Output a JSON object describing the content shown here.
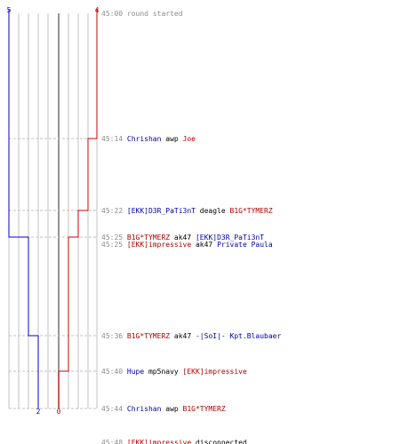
{
  "colors": {
    "blue": "#0000cc",
    "red": "#cc0000",
    "grid": "#c0c0c0",
    "guide": "#c0c0c0",
    "center": "#707070",
    "timestamp": "#8c8c8c"
  },
  "teams": {
    "left": {
      "color": "blue",
      "start": "5",
      "end": "2"
    },
    "right": {
      "color": "red",
      "start": "4",
      "end": "0"
    }
  },
  "events": [
    {
      "time": "45:00",
      "parts": [
        {
          "text": "round started",
          "c": "gray"
        }
      ]
    },
    {
      "time": "45:14",
      "parts": [
        {
          "text": "Chrishan",
          "c": "blue"
        },
        {
          "text": "awp",
          "c": "black"
        },
        {
          "text": "Joe",
          "c": "red"
        }
      ]
    },
    {
      "time": "45:22",
      "parts": [
        {
          "text": "[EKK]D3R_PaTi3nT",
          "c": "blue"
        },
        {
          "text": "deagle",
          "c": "black"
        },
        {
          "text": "B1G*TYMERZ",
          "c": "red"
        }
      ]
    },
    {
      "time": "45:25",
      "parts": [
        {
          "text": "B1G*TYMERZ",
          "c": "red"
        },
        {
          "text": "ak47",
          "c": "black"
        },
        {
          "text": "[EKK]D3R_PaTi3nT",
          "c": "blue"
        }
      ]
    },
    {
      "time": "45:25",
      "parts": [
        {
          "text": "[EKK]impressive",
          "c": "red"
        },
        {
          "text": "ak47",
          "c": "black"
        },
        {
          "text": "Private Paula",
          "c": "blue"
        }
      ]
    },
    {
      "time": "45:36",
      "parts": [
        {
          "text": "B1G*TYMERZ",
          "c": "red"
        },
        {
          "text": "ak47",
          "c": "black"
        },
        {
          "text": "-|SoI|- Kpt.Blaubaer",
          "c": "blue"
        }
      ]
    },
    {
      "time": "45:40",
      "parts": [
        {
          "text": "Hupe",
          "c": "blue"
        },
        {
          "text": "mp5navy",
          "c": "black"
        },
        {
          "text": "[EKK]impressive",
          "c": "red"
        }
      ]
    },
    {
      "time": "45:44",
      "parts": [
        {
          "text": "Chrishan",
          "c": "blue"
        },
        {
          "text": "awp",
          "c": "black"
        },
        {
          "text": "B1G*TYMERZ",
          "c": "red"
        }
      ]
    },
    {
      "time": "45:48",
      "parts": [
        {
          "text": "[EKK]impressive",
          "c": "red"
        },
        {
          "text": "disconnected",
          "c": "black"
        }
      ]
    }
  ]
}
